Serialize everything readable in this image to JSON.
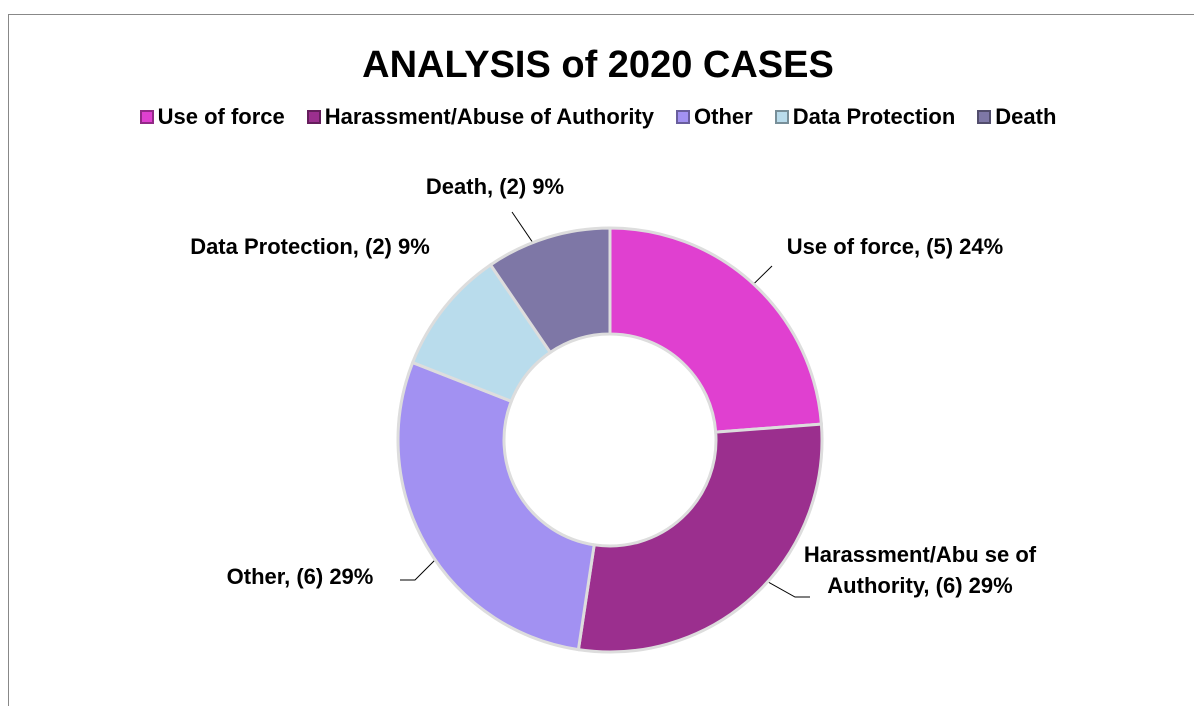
{
  "chart_data": {
    "type": "donut",
    "title": "ANALYSIS of 2020 CASES",
    "categories": [
      "Use of force",
      "Harassment/Abuse of Authority",
      "Other",
      "Data Protection",
      "Death"
    ],
    "values": [
      5,
      6,
      6,
      2,
      2
    ],
    "value_labels": [
      "Use of force, (5) 24%",
      "Harassment/Abu se of Authority, (6) 29%",
      "Other, (6) 29%",
      "Data Protection, (2) 9%",
      "Death, (2) 9%"
    ],
    "colors": [
      "#e040d0",
      "#9b2f8e",
      "#a291f2",
      "#b9dcec",
      "#7e77a6"
    ],
    "legend": "top"
  }
}
